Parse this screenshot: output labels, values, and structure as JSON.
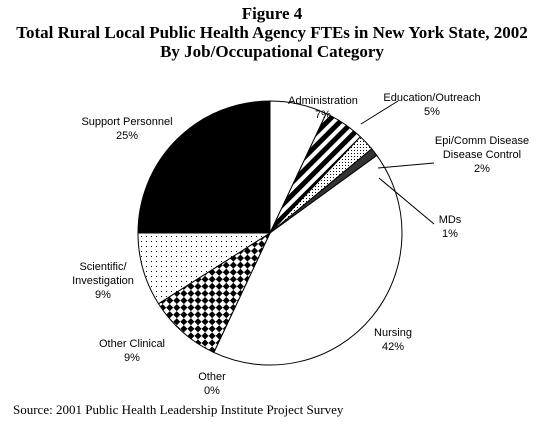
{
  "figure_label": "Figure 4",
  "title": "Total Rural Local Public Health Agency FTEs in New York State, 2002",
  "subtitle": "By Job/Occupational Category",
  "source": "Source:  2001 Public Health Leadership Institute Project Survey",
  "chart_data": {
    "type": "pie",
    "unit": "%",
    "slices": [
      {
        "label": "Administration",
        "value": 7,
        "pattern": "solid-white"
      },
      {
        "label": "Education/Outreach",
        "value": 5,
        "pattern": "diagonal-stripes"
      },
      {
        "label": "Epi/Comm Disease Disease Control",
        "value": 2,
        "pattern": "dots"
      },
      {
        "label": "MDs",
        "value": 1,
        "pattern": "solid-dark"
      },
      {
        "label": "Nursing",
        "value": 42,
        "pattern": "solid-white"
      },
      {
        "label": "Other",
        "value": 0,
        "pattern": "solid-white"
      },
      {
        "label": "Other Clinical",
        "value": 9,
        "pattern": "checker"
      },
      {
        "label": "Scientific/ Investigation",
        "value": 9,
        "pattern": "sparse-dots"
      },
      {
        "label": "Support Personnel",
        "value": 25,
        "pattern": "solid-black"
      }
    ],
    "labels": [
      {
        "lines": [
          "Administration",
          "7%"
        ]
      },
      {
        "lines": [
          "Education/Outreach",
          "5%"
        ]
      },
      {
        "lines": [
          "Epi/Comm Disease",
          "Disease Control",
          "2%"
        ]
      },
      {
        "lines": [
          "MDs",
          "1%"
        ]
      },
      {
        "lines": [
          "Nursing",
          "42%"
        ]
      },
      {
        "lines": [
          "Other",
          "0%"
        ]
      },
      {
        "lines": [
          "Other Clinical",
          "9%"
        ]
      },
      {
        "lines": [
          "Scientific/",
          "Investigation",
          "9%"
        ]
      },
      {
        "lines": [
          "Support Personnel",
          "25%"
        ]
      }
    ]
  }
}
